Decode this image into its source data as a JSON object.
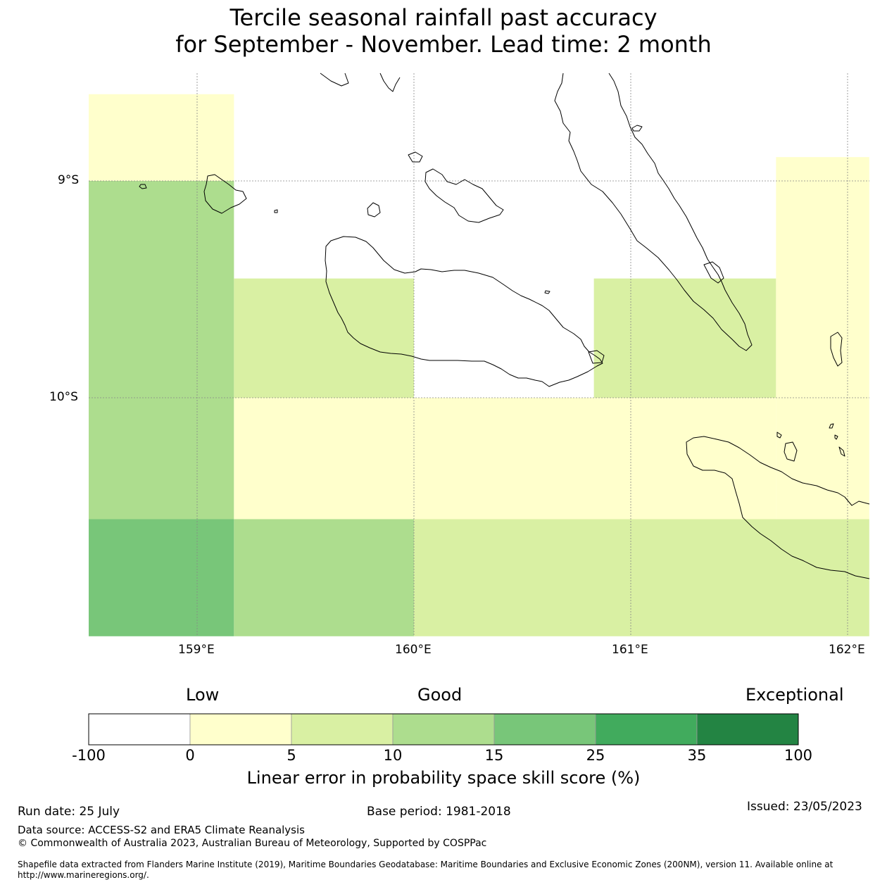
{
  "title": {
    "line1": "Tercile seasonal rainfall past accuracy",
    "line2": "for September - November. Lead time: 2 month"
  },
  "map": {
    "lat_labels": [
      "9°S",
      "10°S"
    ],
    "lon_labels": [
      "159°E",
      "160°E",
      "161°E",
      "162°E"
    ],
    "coastline_color": "#000000",
    "gridline_color": "#888888"
  },
  "skill_cells": [
    {
      "lon_range": [
        158.5,
        159.17
      ],
      "lat_range": [
        -8.6,
        -9.0
      ],
      "category": "0-5"
    },
    {
      "lon_range": [
        158.5,
        159.17
      ],
      "lat_range": [
        -9.0,
        -10.56
      ],
      "category": "10-15"
    },
    {
      "lon_range": [
        158.5,
        159.17
      ],
      "lat_range": [
        -10.56,
        -11.1
      ],
      "category": "15-25"
    },
    {
      "lon_range": [
        159.17,
        160.0
      ],
      "lat_range": [
        -9.45,
        -10.0
      ],
      "category": "5-10"
    },
    {
      "lon_range": [
        159.17,
        161.67
      ],
      "lat_range": [
        -10.0,
        -10.56
      ],
      "category": "0-5"
    },
    {
      "lon_range": [
        159.17,
        160.0
      ],
      "lat_range": [
        -10.56,
        -11.1
      ],
      "category": "10-15"
    },
    {
      "lon_range": [
        160.0,
        162.1
      ],
      "lat_range": [
        -10.56,
        -11.1
      ],
      "category": "5-10"
    },
    {
      "lon_range": [
        160.83,
        161.67
      ],
      "lat_range": [
        -9.45,
        -10.0
      ],
      "category": "5-10"
    },
    {
      "lon_range": [
        161.67,
        162.1
      ],
      "lat_range": [
        -8.89,
        -10.56
      ],
      "category": "0-5"
    }
  ],
  "colorbar": {
    "words": {
      "low": "Low",
      "good": "Good",
      "exceptional": "Exceptional"
    },
    "ticks": [
      "-100",
      "0",
      "5",
      "10",
      "15",
      "25",
      "35",
      "100"
    ],
    "colors": [
      "#ffffff",
      "#ffffcc",
      "#d9f0a3",
      "#addd8e",
      "#78c679",
      "#41ab5d",
      "#238443"
    ],
    "label": "Linear error in probability space skill score (%)"
  },
  "footer": {
    "run_date": "Run date: 25 July",
    "base_period": "Base period: 1981-2018",
    "issued": "Issued: 23/05/2023",
    "data_source": "Data source: ACCESS-S2 and ERA5 Climate Reanalysis",
    "copyright": "© Commonwealth of Australia 2023, Australian Bureau of Meteorology, Supported by COSPPac",
    "shapefile_line1": "Shapefile data extracted from Flanders Marine Institute (2019), Maritime Boundaries Geodatabase: Maritime Boundaries and Exclusive Economic Zones (200NM), version 11. Available online at",
    "shapefile_line2": "http://www.marineregions.org/."
  }
}
